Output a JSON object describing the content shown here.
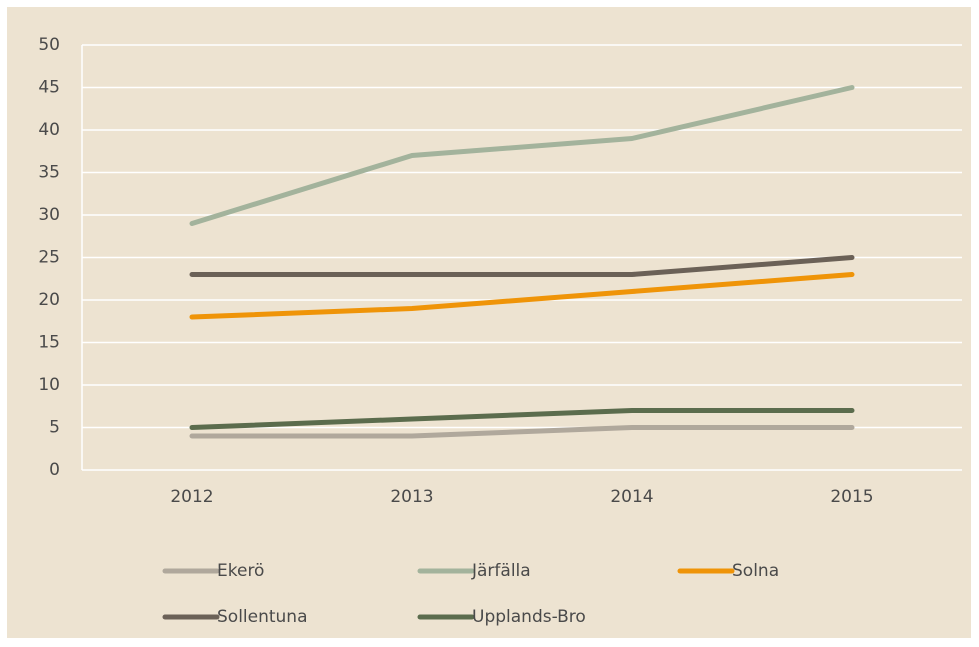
{
  "chart_data": {
    "type": "line",
    "categories": [
      "2012",
      "2013",
      "2014",
      "2015"
    ],
    "series": [
      {
        "name": "Ekerö",
        "color": "#b0a89c",
        "values": [
          4,
          4,
          5,
          5
        ]
      },
      {
        "name": "Järfälla",
        "color": "#a3b39c",
        "values": [
          29,
          37,
          39,
          45
        ]
      },
      {
        "name": "Solna",
        "color": "#ef9408",
        "values": [
          18,
          19,
          21,
          23
        ]
      },
      {
        "name": "Sollentuna",
        "color": "#6b6157",
        "values": [
          23,
          23,
          23,
          25
        ]
      },
      {
        "name": "Upplands-Bro",
        "color": "#5b6c4d",
        "values": [
          5,
          6,
          7,
          7
        ]
      }
    ],
    "ylim": [
      0,
      50
    ],
    "yticks": [
      0,
      5,
      10,
      15,
      20,
      25,
      30,
      35,
      40,
      45,
      50
    ],
    "grid": true,
    "legend": "bottom"
  }
}
